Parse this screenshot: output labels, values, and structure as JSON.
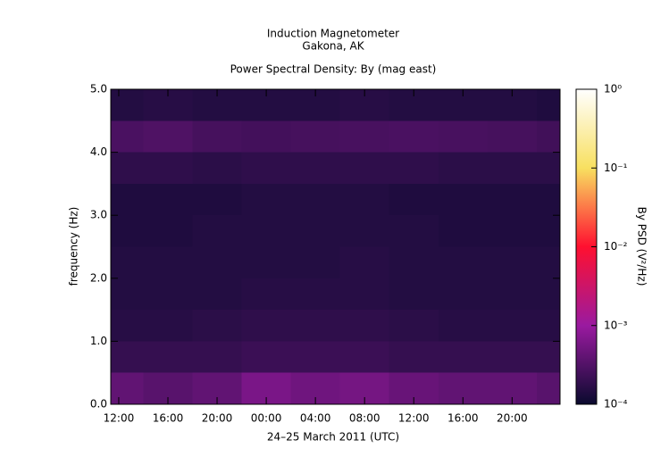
{
  "chart_data": {
    "type": "heatmap",
    "title": "Induction Magnetometer",
    "subtitle_station": "Gakona, AK",
    "subtitle": "Power Spectral Density: By (mag east)",
    "x_label": "24–25 March 2011 (UTC)",
    "y_label": "frequency (Hz)",
    "colorbar_label": "By PSD (V²/Hz)",
    "xlim": [
      11.35,
      47.9
    ],
    "xticks": [
      {
        "value": 12,
        "label": "12:00"
      },
      {
        "value": 16,
        "label": "16:00"
      },
      {
        "value": 20,
        "label": "20:00"
      },
      {
        "value": 24,
        "label": "00:00"
      },
      {
        "value": 28,
        "label": "04:00"
      },
      {
        "value": 32,
        "label": "08:00"
      },
      {
        "value": 36,
        "label": "12:00"
      },
      {
        "value": 40,
        "label": "16:00"
      },
      {
        "value": 44,
        "label": "20:00"
      }
    ],
    "ylim": [
      0,
      5
    ],
    "yticks": [
      {
        "value": 0,
        "label": "0.0"
      },
      {
        "value": 1,
        "label": "1.0"
      },
      {
        "value": 2,
        "label": "2.0"
      },
      {
        "value": 3,
        "label": "3.0"
      },
      {
        "value": 4,
        "label": "4.0"
      },
      {
        "value": 5,
        "label": "5.0"
      }
    ],
    "xbins": [
      11.35,
      14,
      18,
      22,
      26,
      30,
      34,
      38,
      42,
      46,
      47.9
    ],
    "ybins": [
      0,
      0.5,
      1,
      1.5,
      2,
      2.5,
      3,
      3.5,
      4,
      4.5,
      5
    ],
    "z": [
      [
        0.0004,
        0.00035,
        0.0004,
        0.0006,
        0.0005,
        0.00055,
        0.00045,
        0.0004,
        0.0004,
        0.00035
      ],
      [
        0.0002,
        0.0002,
        0.0002,
        0.00022,
        0.00022,
        0.00022,
        0.0002,
        0.0002,
        0.0002,
        0.0002
      ],
      [
        0.00016,
        0.00016,
        0.00017,
        0.00018,
        0.00018,
        0.00018,
        0.00017,
        0.00016,
        0.00016,
        0.00016
      ],
      [
        0.00015,
        0.00015,
        0.00015,
        0.00016,
        0.00016,
        0.00016,
        0.00015,
        0.00015,
        0.00015,
        0.00015
      ],
      [
        0.00015,
        0.00015,
        0.00015,
        0.00015,
        0.00015,
        0.00016,
        0.00015,
        0.00015,
        0.00015,
        0.00015
      ],
      [
        0.00014,
        0.00014,
        0.00015,
        0.00015,
        0.00015,
        0.00015,
        0.00015,
        0.00014,
        0.00014,
        0.00014
      ],
      [
        0.00014,
        0.00014,
        0.00014,
        0.00015,
        0.00015,
        0.00015,
        0.00014,
        0.00014,
        0.00014,
        0.00014
      ],
      [
        0.00018,
        0.00018,
        0.00017,
        0.00018,
        0.00018,
        0.00018,
        0.00018,
        0.00017,
        0.00017,
        0.00017
      ],
      [
        0.00028,
        0.0003,
        0.00026,
        0.00025,
        0.00026,
        0.00027,
        0.00028,
        0.00027,
        0.00026,
        0.00024
      ],
      [
        0.00015,
        0.00016,
        0.00015,
        0.00015,
        0.00015,
        0.00016,
        0.00015,
        0.00015,
        0.00015,
        0.00014
      ]
    ],
    "color_scale": "log",
    "clim": [
      0.0001,
      1
    ],
    "cticks": [
      {
        "value": 0.0001,
        "label": "10⁻⁴"
      },
      {
        "value": 0.001,
        "label": "10⁻³"
      },
      {
        "value": 0.01,
        "label": "10⁻²"
      },
      {
        "value": 0.1,
        "label": "10⁻¹"
      },
      {
        "value": 1,
        "label": "10⁰"
      }
    ],
    "colormap": [
      {
        "value": 0.0001,
        "color": "#0a0a2e"
      },
      {
        "value": 0.001,
        "color": "#9a1aa0"
      },
      {
        "value": 0.01,
        "color": "#ff1030"
      },
      {
        "value": 0.1,
        "color": "#f8e060"
      },
      {
        "value": 1,
        "color": "#ffffff"
      }
    ]
  }
}
